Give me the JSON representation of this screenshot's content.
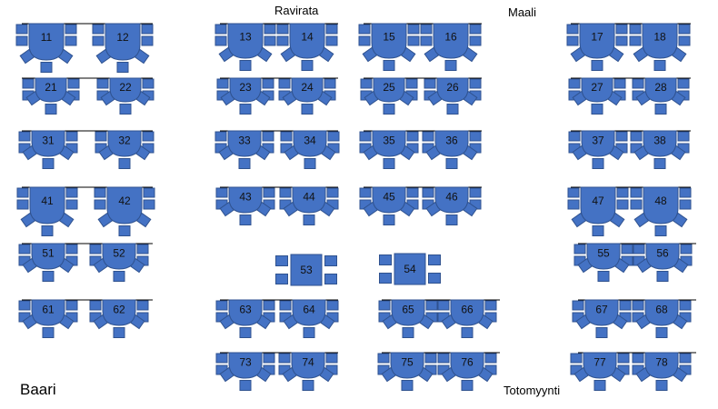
{
  "areas": {
    "ravirata": "Ravirata",
    "maali": "Maali",
    "baari": "Baari",
    "totomyynti": "Totomyynti"
  },
  "colors": {
    "table_fill": "#4472c4",
    "table_stroke": "#2f528f",
    "rail": "#000000"
  },
  "tables": {
    "row1": [
      "11",
      "12",
      "13",
      "14",
      "15",
      "16",
      "17",
      "18"
    ],
    "row2": [
      "21",
      "22",
      "23",
      "24",
      "25",
      "26",
      "27",
      "28"
    ],
    "row3": [
      "31",
      "32",
      "33",
      "34",
      "35",
      "36",
      "37",
      "38"
    ],
    "row4": [
      "41",
      "42",
      "43",
      "44",
      "45",
      "46",
      "47",
      "48"
    ],
    "row5": [
      "51",
      "52",
      "53",
      "54",
      "55",
      "56"
    ],
    "row6": [
      "61",
      "62",
      "63",
      "64",
      "65",
      "66",
      "67",
      "68"
    ],
    "row7": [
      "73",
      "74",
      "75",
      "76",
      "77",
      "78"
    ]
  }
}
